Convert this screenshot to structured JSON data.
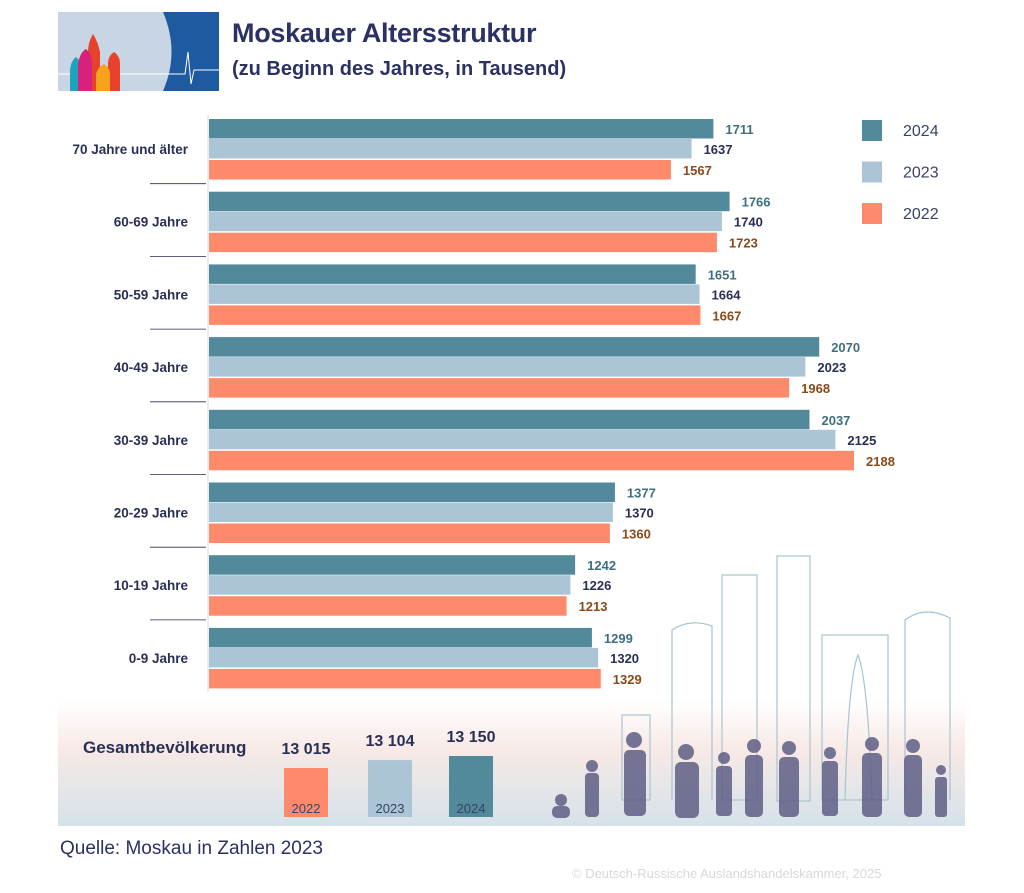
{
  "header": {
    "title": "Moskauer Altersstruktur",
    "subtitle": "(zu Beginn des Jahres, in Tausend)"
  },
  "chart_data": {
    "type": "bar",
    "orientation": "horizontal",
    "title": "Moskauer Altersstruktur",
    "subtitle": "(zu Beginn des Jahres, in Tausend)",
    "categories": [
      "70 Jahre und älter",
      "60-69 Jahre",
      "50-59 Jahre",
      "40-49 Jahre",
      "30-39 Jahre",
      "20-29 Jahre",
      "10-19 Jahre",
      "0-9 Jahre"
    ],
    "series": [
      {
        "name": "2024",
        "color": "#528a9c",
        "label_color": "#3f6f7e",
        "values": [
          1711,
          1766,
          1651,
          2070,
          2037,
          1377,
          1242,
          1299
        ]
      },
      {
        "name": "2023",
        "color": "#abc4d6",
        "label_color": "#2a2f55",
        "values": [
          1637,
          1740,
          1664,
          2023,
          2125,
          1370,
          1226,
          1320
        ]
      },
      {
        "name": "2022",
        "color": "#fe8a6c",
        "label_color": "#8a4a1a",
        "values": [
          1567,
          1723,
          1667,
          1968,
          2188,
          1360,
          1213,
          1329
        ]
      }
    ],
    "xlim": [
      0,
      2188
    ],
    "grid": false,
    "legend": "top-right",
    "totals": {
      "label": "Gesamtbevölkerung",
      "items": [
        {
          "year": "2022",
          "value_label": "13 015",
          "value": 13015,
          "color": "#fe8a6c"
        },
        {
          "year": "2023",
          "value_label": "13 104",
          "value": 13104,
          "color": "#abc4d6"
        },
        {
          "year": "2024",
          "value_label": "13 150",
          "value": 13150,
          "color": "#528a9c"
        }
      ]
    }
  },
  "footer": {
    "source": "Quelle: Moskau in Zahlen 2023",
    "copyright": "© Deutsch-Russische Auslandshandelskammer, 2025"
  }
}
